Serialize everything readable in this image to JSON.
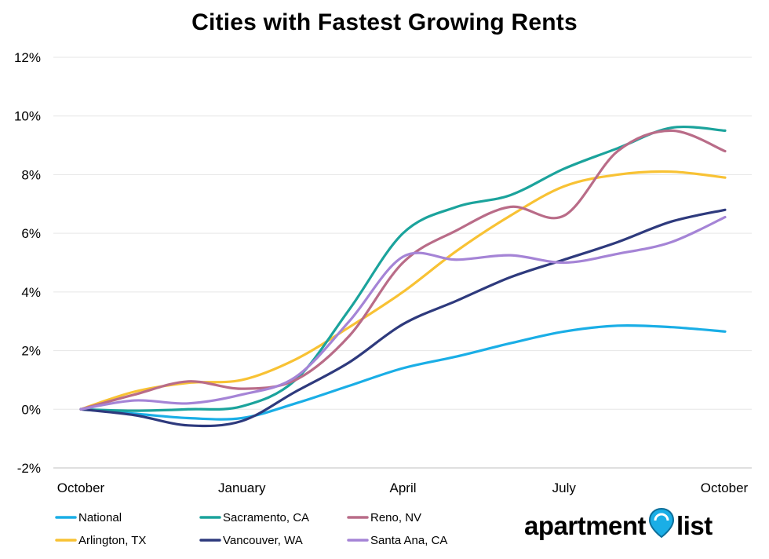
{
  "chart_data": {
    "type": "line",
    "title": "Cities with Fastest Growing Rents",
    "x_labels": [
      "October",
      "January",
      "April",
      "July",
      "October"
    ],
    "y_ticks": [
      "12%",
      "10%",
      "8%",
      "6%",
      "4%",
      "2%",
      "0%",
      "-2%"
    ],
    "ylim": [
      -2,
      12
    ],
    "xlim": [
      0,
      12
    ],
    "grid": true,
    "legend_position": "bottom",
    "series": [
      {
        "name": "National",
        "color": "#1aaee6",
        "x": [
          0,
          1,
          2,
          3,
          4,
          5,
          6,
          7,
          8,
          9,
          10,
          11,
          12
        ],
        "y": [
          0.0,
          -0.15,
          -0.3,
          -0.3,
          0.2,
          0.8,
          1.4,
          1.8,
          2.25,
          2.65,
          2.85,
          2.8,
          2.65
        ]
      },
      {
        "name": "Arlington, TX",
        "color": "#f8c234",
        "x": [
          0,
          1,
          2,
          3,
          4,
          5,
          6,
          7,
          8,
          9,
          10,
          11,
          12
        ],
        "y": [
          0.0,
          0.6,
          0.9,
          1.0,
          1.7,
          2.8,
          4.0,
          5.4,
          6.6,
          7.6,
          8.0,
          8.1,
          7.9
        ]
      },
      {
        "name": "Sacramento, CA",
        "color": "#1ba39c",
        "x": [
          0,
          1,
          2,
          3,
          4,
          5,
          6,
          7,
          8,
          9,
          10,
          11,
          12
        ],
        "y": [
          0.0,
          -0.05,
          0.0,
          0.1,
          1.0,
          3.4,
          6.0,
          6.9,
          7.3,
          8.2,
          8.9,
          9.6,
          9.5
        ]
      },
      {
        "name": "Vancouver, WA",
        "color": "#2e3a7d",
        "x": [
          0,
          1,
          2,
          3,
          4,
          5,
          6,
          7,
          8,
          9,
          10,
          11,
          12
        ],
        "y": [
          0.0,
          -0.2,
          -0.55,
          -0.4,
          0.6,
          1.6,
          2.9,
          3.7,
          4.5,
          5.1,
          5.7,
          6.4,
          6.8
        ]
      },
      {
        "name": "Reno, NV",
        "color": "#b96c88",
        "x": [
          0,
          1,
          2,
          3,
          4,
          5,
          6,
          7,
          8,
          9,
          10,
          11,
          12
        ],
        "y": [
          0.0,
          0.5,
          0.95,
          0.7,
          1.0,
          2.5,
          5.0,
          6.1,
          6.9,
          6.6,
          8.8,
          9.5,
          8.8
        ]
      },
      {
        "name": "Santa Ana, CA",
        "color": "#a584d6",
        "x": [
          0,
          1,
          2,
          3,
          4,
          5,
          6,
          7,
          8,
          9,
          10,
          11,
          12
        ],
        "y": [
          0.0,
          0.3,
          0.2,
          0.5,
          1.1,
          3.0,
          5.2,
          5.1,
          5.25,
          5.0,
          5.3,
          5.7,
          6.55
        ]
      }
    ]
  },
  "legend_layout": [
    [
      "National",
      "Sacramento, CA",
      "Reno, NV"
    ],
    [
      "Arlington, TX",
      "Vancouver, WA",
      "Santa Ana, CA"
    ]
  ],
  "logo": {
    "part1": "apartment",
    "part2": "list",
    "pin_color": "#1aaee6"
  }
}
